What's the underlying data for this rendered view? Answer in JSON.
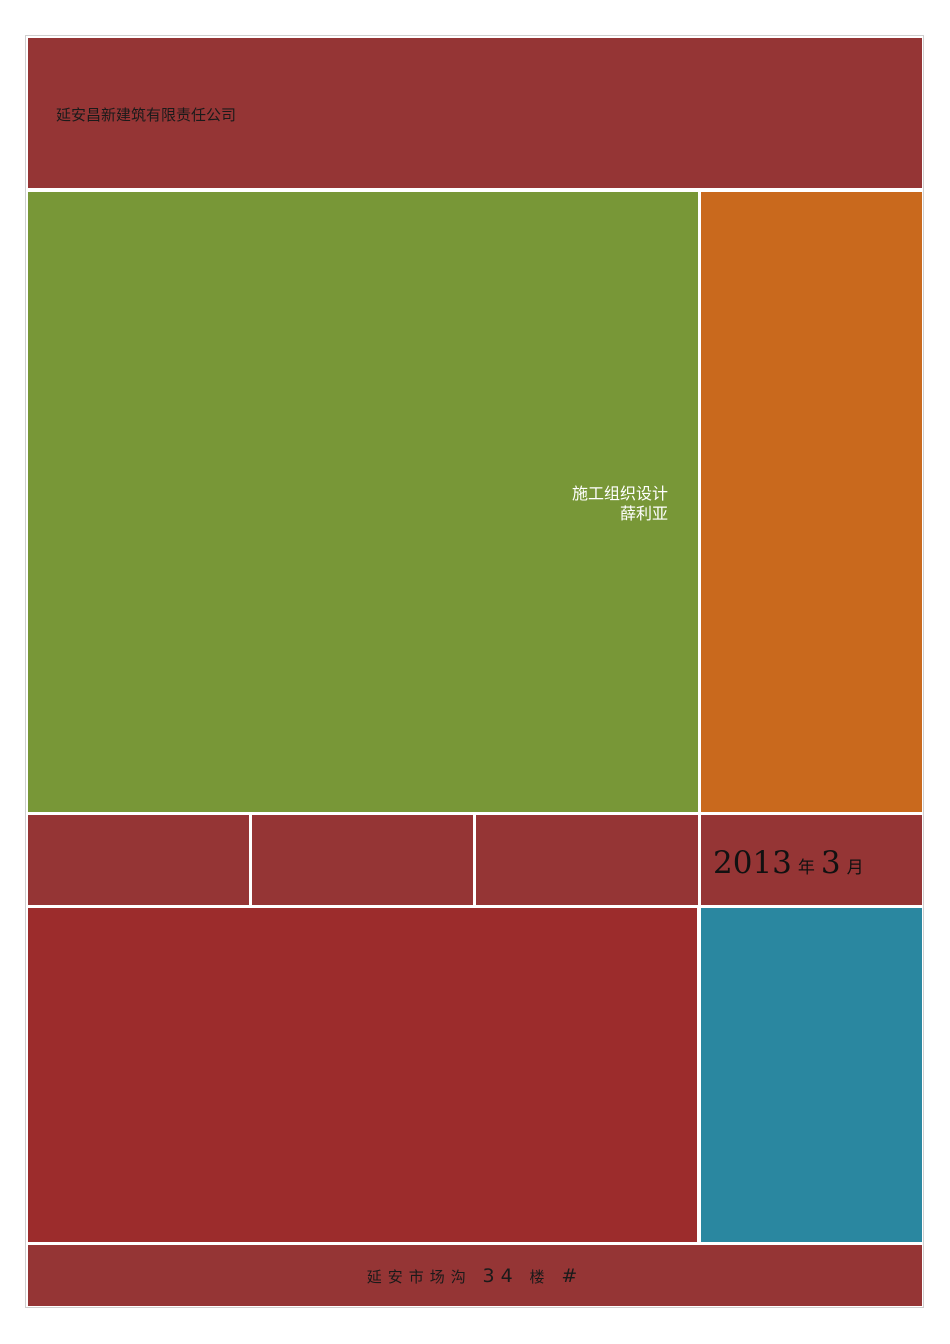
{
  "header": {
    "company": "延安昌新建筑有限责任公司"
  },
  "main": {
    "title": "施工组织设计",
    "author": "薛利亚"
  },
  "date": {
    "year": "2013",
    "year_unit": "年",
    "month": "3",
    "month_unit": "月"
  },
  "footer": {
    "addr_part1": "延安市场沟",
    "addr_number": "34",
    "addr_part2": "楼",
    "addr_part3": "#"
  },
  "colors": {
    "header": "#953535",
    "green_panel": "#789737",
    "orange_panel": "#c9691d",
    "red_panel": "#9c2c2c",
    "teal_panel": "#2a87a0"
  }
}
